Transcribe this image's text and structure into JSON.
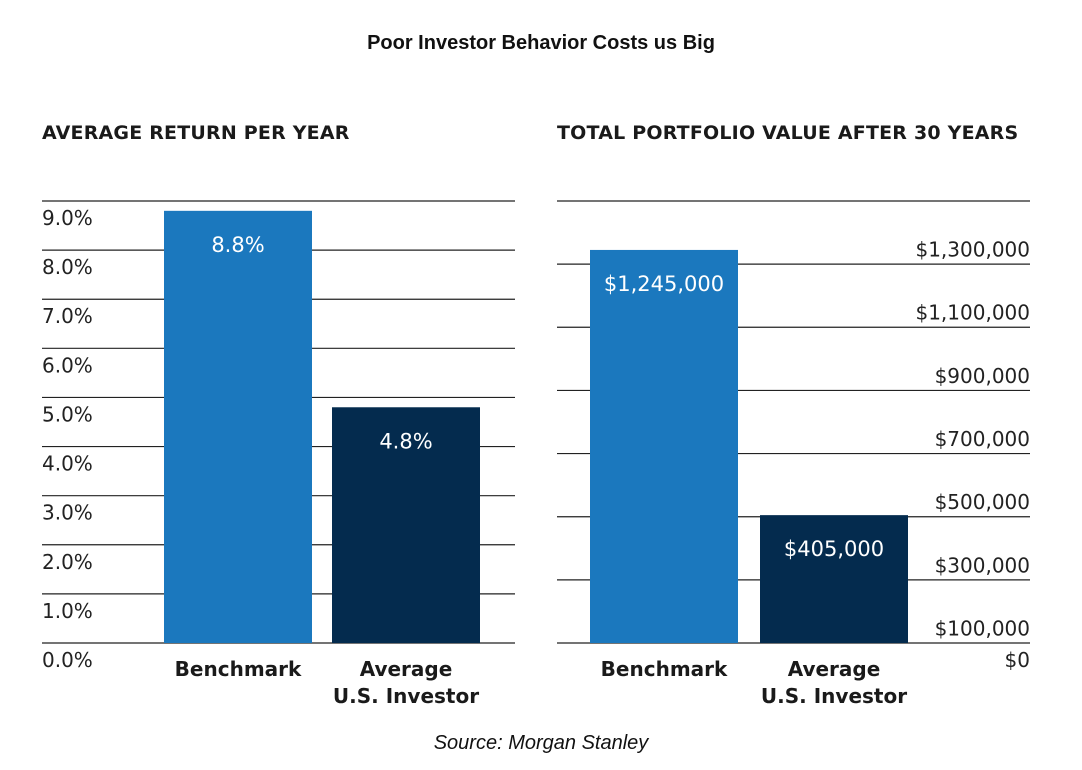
{
  "title": "Poor Investor Behavior Costs us Big",
  "source": "Source: Morgan Stanley",
  "colors": {
    "benchmark": "#1B78BE",
    "investor": "#042B4E",
    "grid": "#222222",
    "bar_label": "#ffffff"
  },
  "chart_data": [
    {
      "type": "bar",
      "title": "AVERAGE RETURN PER YEAR",
      "categories": [
        "Benchmark",
        "Average\nU.S. Investor"
      ],
      "values": [
        8.8,
        4.8
      ],
      "data_labels": [
        "8.8%",
        "4.8%"
      ],
      "ylim": [
        0,
        9
      ],
      "ytick_values": [
        0,
        1,
        2,
        3,
        4,
        5,
        6,
        7,
        8,
        9
      ],
      "ytick_labels": [
        "0.0%",
        "1.0%",
        "2.0%",
        "3.0%",
        "4.0%",
        "5.0%",
        "6.0%",
        "7.0%",
        "8.0%",
        "9.0%"
      ],
      "axis_side": "left",
      "grid": true
    },
    {
      "type": "bar",
      "title": "TOTAL PORTFOLIO VALUE AFTER 30 YEARS",
      "categories": [
        "Benchmark",
        "Average\nU.S. Investor"
      ],
      "values": [
        1245000,
        405000
      ],
      "data_labels": [
        "$1,245,000",
        "$405,000"
      ],
      "ylim": [
        0,
        1400000
      ],
      "ytick_values": [
        0,
        100000,
        300000,
        500000,
        700000,
        900000,
        1100000,
        1300000
      ],
      "ytick_labels": [
        "$0",
        "$100,000",
        "$300,000",
        "$500,000",
        "$700,000",
        "$900,000",
        "$1,100,000",
        "$1,300,000"
      ],
      "axis_side": "right",
      "grid": true
    }
  ]
}
